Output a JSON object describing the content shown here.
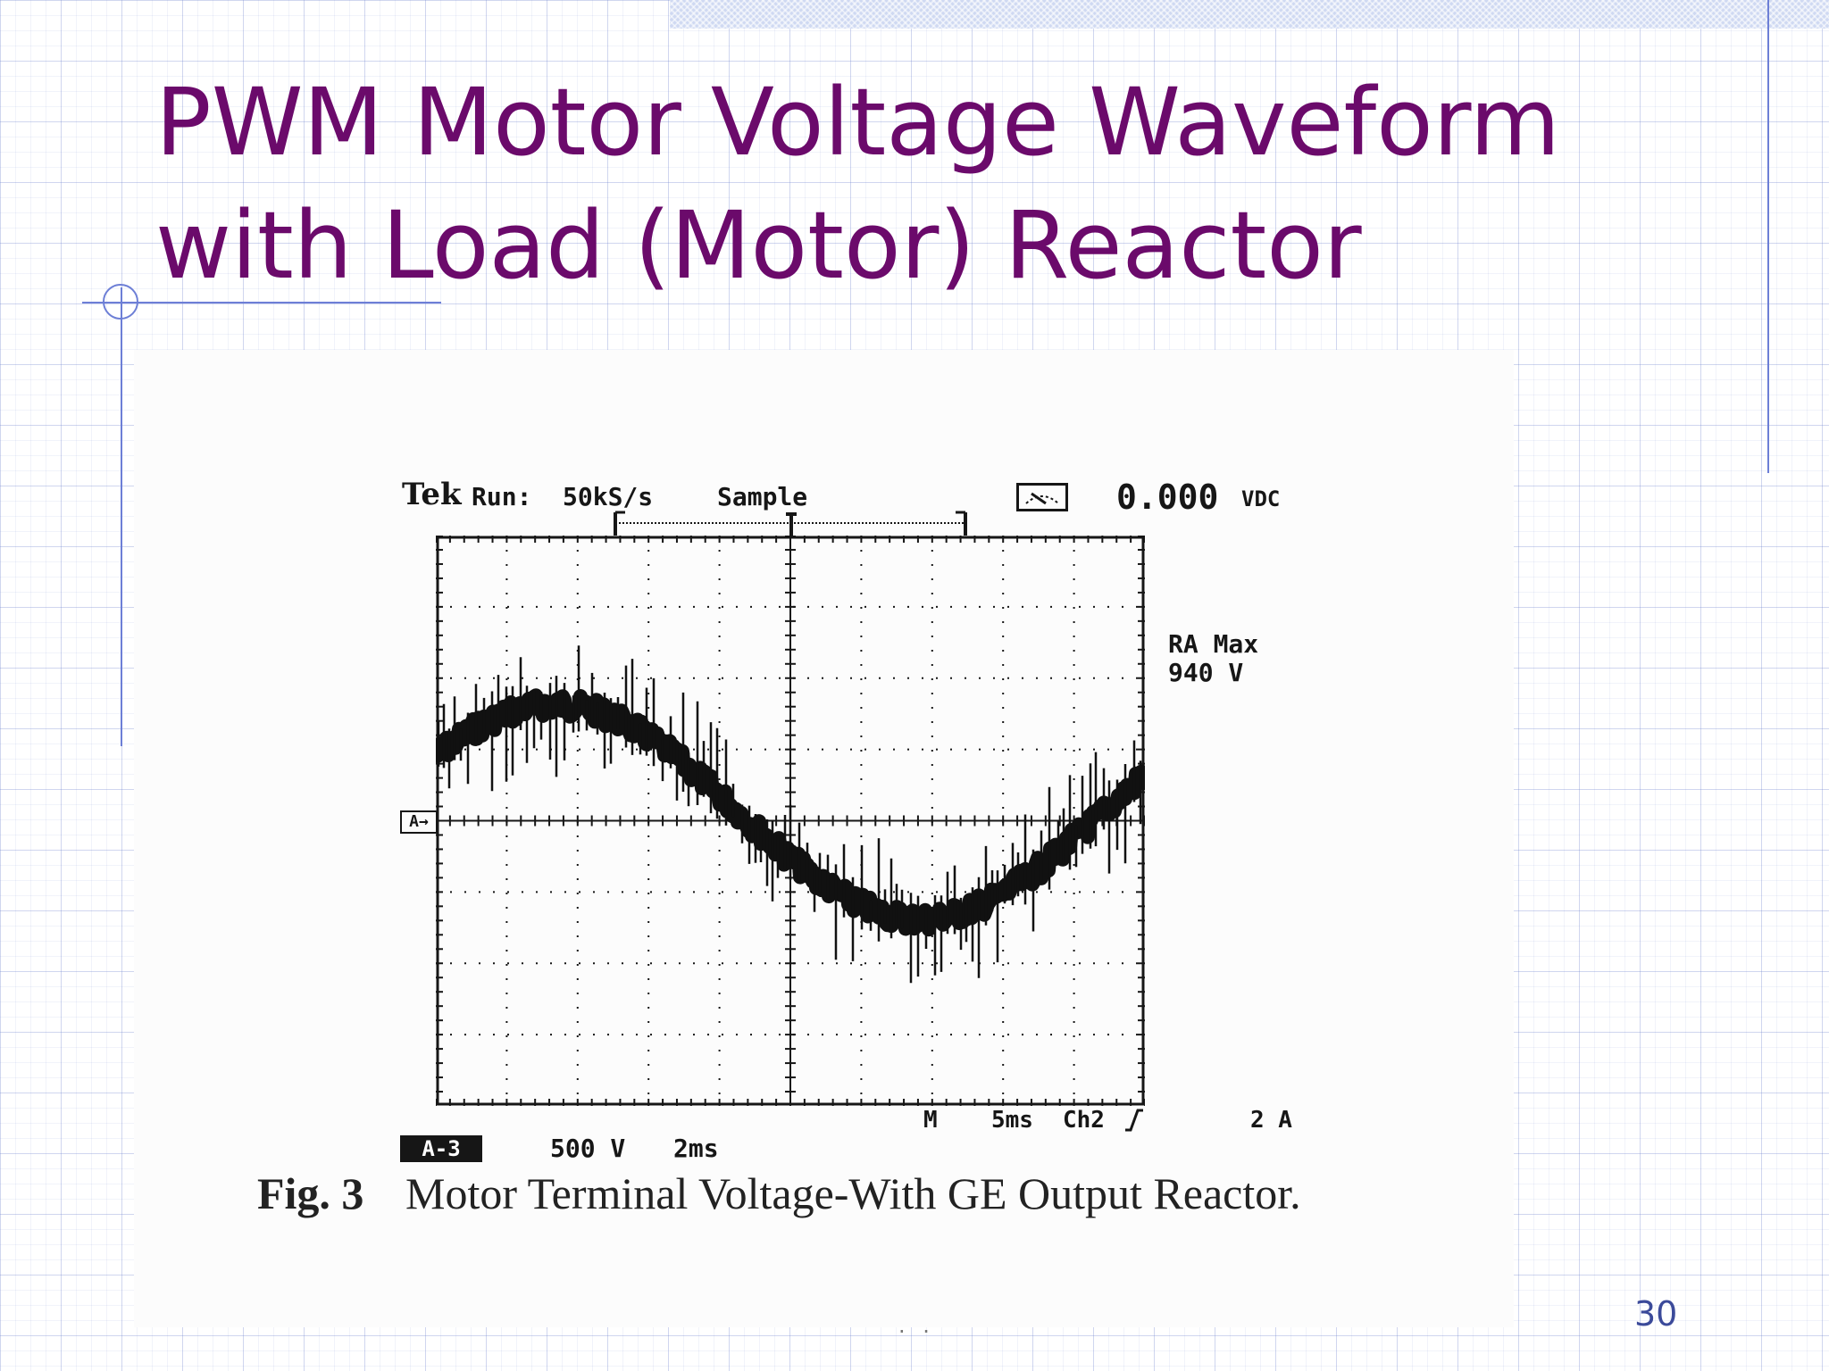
{
  "slide": {
    "title": "PWM Motor Voltage Waveform\nwith Load (Motor) Reactor",
    "page_number": "30",
    "footer_marks": "· ·"
  },
  "scope": {
    "brand": "Tek",
    "run_label": "Run:",
    "sample_rate": "50kS/s",
    "mode": "Sample",
    "meter_icon": "meter-icon",
    "dc_value": "0.000",
    "dc_unit": "VDC",
    "max_label": "RA Max",
    "max_value": "940 V",
    "channel_marker": "A→",
    "channel_badge": "A-3",
    "volts_per_div": "500 V",
    "time_per_div": "2ms",
    "main_timebase_label": "M",
    "main_timebase": "5ms",
    "trigger_source": "Ch2",
    "trigger_level": "2 A",
    "trigger_slope_icon": "rising-edge-icon"
  },
  "figure": {
    "number": "Fig. 3",
    "caption": "Motor Terminal Voltage-With GE Output Reactor."
  },
  "colors": {
    "title": "#6b0a6b",
    "page_number": "#3b4a9a",
    "deco_lines": "#6d7fd6",
    "trace": "#111111"
  }
}
